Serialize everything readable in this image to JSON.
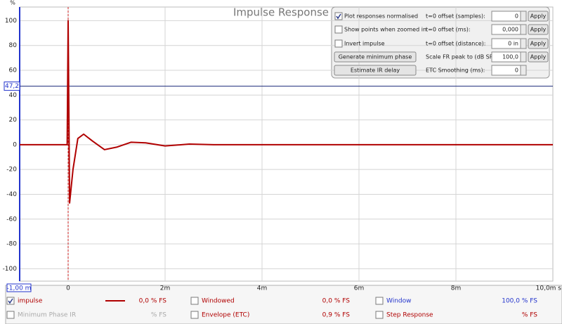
{
  "chart_data": {
    "type": "line",
    "title": "Impulse Response",
    "y_unit": "%",
    "x": [
      -1,
      -0.02,
      0,
      0.03,
      0.1,
      0.2,
      0.32,
      0.5,
      0.75,
      1.0,
      1.3,
      1.6,
      2.0,
      2.5,
      3.0,
      4.0,
      6.0,
      8.0,
      10.0
    ],
    "series": [
      {
        "name": "impulse",
        "color": "#b00000",
        "values": [
          0,
          0,
          100,
          -47,
          -20,
          5,
          8.5,
          3,
          -4,
          -2,
          2,
          1.5,
          -1,
          0.5,
          0,
          0,
          0,
          0,
          0
        ]
      }
    ],
    "xlim": [
      -1,
      10
    ],
    "ylim": [
      -110,
      111
    ],
    "xticks": [
      {
        "value": -1,
        "label": "-1,00 m"
      },
      0,
      {
        "value": 2,
        "label": "2m"
      },
      {
        "value": 4,
        "label": "4m"
      },
      {
        "value": 6,
        "label": "6m"
      },
      {
        "value": 8,
        "label": "8m"
      },
      {
        "value": 10,
        "label": "10,0m s"
      }
    ],
    "yticks": [
      -100,
      -80,
      -60,
      -40,
      -20,
      0,
      20,
      40,
      60,
      80,
      100
    ],
    "grid": true,
    "cursor_y": {
      "value": 47.2,
      "label": "47,2"
    }
  },
  "controls": {
    "checkboxes": [
      {
        "label": "Plot responses normalised",
        "checked": true
      },
      {
        "label": "Show points when zoomed in",
        "checked": false
      },
      {
        "label": "Invert impulse",
        "checked": false
      }
    ],
    "buttons": [
      "Generate minimum phase",
      "Estimate IR delay"
    ],
    "fields": [
      {
        "label": "t=0 offset (samples):",
        "value": "0",
        "apply": "Apply"
      },
      {
        "label": "t=0 offset (ms):",
        "value": "0,000",
        "apply": "Apply"
      },
      {
        "label": "t=0 offset (distance):",
        "value": "0 in",
        "apply": "Apply"
      },
      {
        "label": "Scale FR peak to (dB SPL):",
        "value": "100,0",
        "apply": "Apply"
      },
      {
        "label": "ETC Smoothing (ms):",
        "value": "0"
      }
    ]
  },
  "traces": [
    {
      "label": "Windowed",
      "checked": false,
      "reading": "0,0 % FS",
      "color": "#b00000"
    },
    {
      "label": "Window",
      "checked": false,
      "reading": "100,0 % FS",
      "color": "#2233cc"
    },
    {
      "label": "Minimum Phase IR",
      "checked": false,
      "reading": "% FS",
      "color": "#aaaaaa"
    },
    {
      "label": "Envelope (ETC)",
      "checked": false,
      "reading": "0,9 % FS",
      "color": "#b00000"
    },
    {
      "label": "Step Response",
      "checked": false,
      "reading": "% FS",
      "color": "#b00000"
    }
  ],
  "impulse_trace": {
    "checked": true,
    "reading": "0,0 % FS"
  }
}
